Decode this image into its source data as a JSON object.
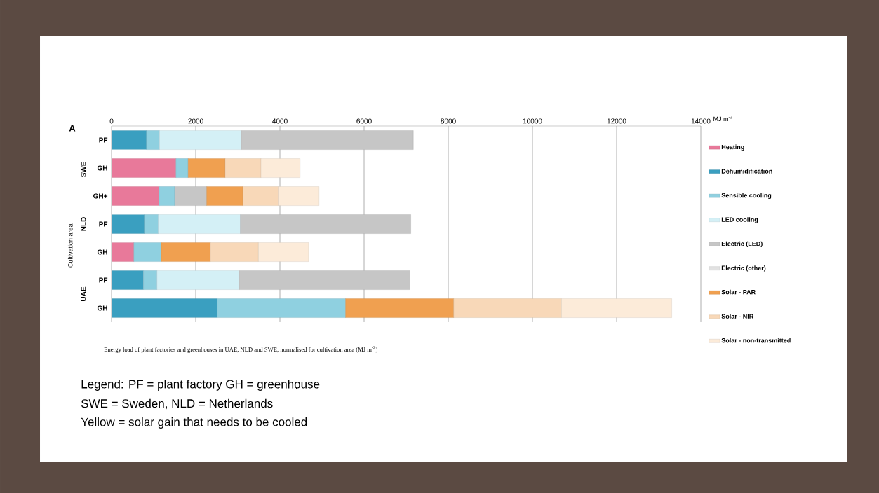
{
  "chart_data": {
    "type": "bar",
    "orientation": "horizontal",
    "stacked": true,
    "xlabel": "MJ m$^{-2}$",
    "ylabel": "Cultivation area",
    "categories": [
      "PF",
      "GH",
      "GH+",
      "PF",
      "GH",
      "PF",
      "GH"
    ],
    "series": [
      {
        "name": "Heating",
        "color": "#e8799a",
        "values": [
          null,
          1530,
          1130,
          null,
          530,
          null,
          null
        ]
      },
      {
        "name": "Dehumidification",
        "color": "#3a9fc0",
        "values": [
          830,
          null,
          null,
          780,
          null,
          760,
          2510
        ]
      },
      {
        "name": "Sensible cooling",
        "color": "#8fd0e0",
        "values": [
          310,
          290,
          370,
          330,
          650,
          320,
          3050
        ]
      },
      {
        "name": "LED cooling",
        "color": "#d4f0f6",
        "values": [
          1940,
          null,
          null,
          1950,
          null,
          1950,
          null
        ]
      },
      {
        "name": "Electric (LED)",
        "color": "#c6c6c6",
        "values": [
          4090,
          null,
          760,
          4050,
          null,
          4050,
          null
        ]
      },
      {
        "name": "Electric (other)",
        "color": "#e2e2e2",
        "values": [
          null,
          null,
          null,
          null,
          null,
          null,
          null
        ]
      },
      {
        "name": "Solar - PAR",
        "color": "#f0a050",
        "values": [
          null,
          880,
          860,
          null,
          1170,
          null,
          2570
        ]
      },
      {
        "name": "Solar - NIR",
        "color": "#f8d8b8",
        "values": [
          null,
          850,
          840,
          null,
          1140,
          null,
          2560
        ]
      },
      {
        "name": "Solar - non-transmitted",
        "color": "#fcebd9",
        "values": [
          null,
          930,
          970,
          null,
          1190,
          null,
          2620
        ]
      }
    ],
    "xlim": [
      0,
      14000
    ],
    "xticks": [
      0,
      2000,
      4000,
      6000,
      8000,
      10000,
      12000,
      14000
    ],
    "grid": "x",
    "legend": "right",
    "annotations": [
      "A",
      "SWE",
      "NLD",
      "UAE",
      "Energy load of plant factories and greenhouses in UAE, NLD and SWE, normalised for cultivation area (MJ m$^{-2}$)",
      "Legend: PF = plant factory GH = greenhouse",
      "SWE = Sweden, NLD = Netherlands",
      "Yellow = solar gain that needs to be cooled"
    ]
  }
}
